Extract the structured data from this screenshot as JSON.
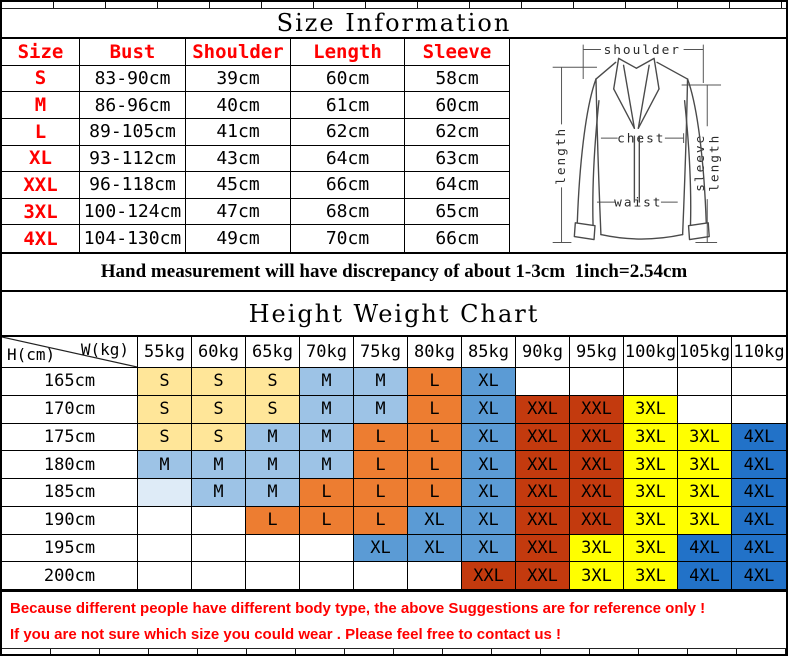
{
  "title": "Size Information",
  "size_table": {
    "headers": [
      "Size",
      "Bust",
      "Shoulder",
      "Length",
      "Sleeve"
    ],
    "rows": [
      {
        "size": "S",
        "bust": "83-90cm",
        "shoulder": "39cm",
        "length": "60cm",
        "sleeve": "58cm"
      },
      {
        "size": "M",
        "bust": "86-96cm",
        "shoulder": "40cm",
        "length": "61cm",
        "sleeve": "60cm"
      },
      {
        "size": "L",
        "bust": "89-105cm",
        "shoulder": "41cm",
        "length": "62cm",
        "sleeve": "62cm"
      },
      {
        "size": "XL",
        "bust": "93-112cm",
        "shoulder": "43cm",
        "length": "64cm",
        "sleeve": "63cm"
      },
      {
        "size": "XXL",
        "bust": "96-118cm",
        "shoulder": "45cm",
        "length": "66cm",
        "sleeve": "64cm"
      },
      {
        "size": "3XL",
        "bust": "100-124cm",
        "shoulder": "47cm",
        "length": "68cm",
        "sleeve": "65cm"
      },
      {
        "size": "4XL",
        "bust": "104-130cm",
        "shoulder": "49cm",
        "length": "70cm",
        "sleeve": "66cm"
      }
    ]
  },
  "diagram": {
    "shoulder": "shoulder",
    "chest": "chest",
    "waist": "waist",
    "length": "length",
    "sleeve_word1": "sleeve",
    "sleeve_word2": "length"
  },
  "note": "Hand measurement will have discrepancy of about 1-3cm  1inch=2.54cm",
  "hw_chart": {
    "title": "Height Weight Chart",
    "corner_h": "H(cm)",
    "corner_w": "W(kg)",
    "weights": [
      "55kg",
      "60kg",
      "65kg",
      "70kg",
      "75kg",
      "80kg",
      "85kg",
      "90kg",
      "95kg",
      "100kg",
      "105kg",
      "110kg"
    ],
    "heights": [
      "165cm",
      "170cm",
      "175cm",
      "180cm",
      "185cm",
      "190cm",
      "195cm",
      "200cm"
    ],
    "cells": [
      [
        "S",
        "S",
        "S",
        "M",
        "M",
        "L",
        "XL",
        "",
        "",
        "",
        "",
        ""
      ],
      [
        "S",
        "S",
        "S",
        "M",
        "M",
        "L",
        "XL",
        "XXL",
        "XXL",
        "3XL",
        "",
        ""
      ],
      [
        "S",
        "S",
        "M",
        "M",
        "L",
        "L",
        "XL",
        "XXL",
        "XXL",
        "3XL",
        "3XL",
        "4XL"
      ],
      [
        "M",
        "M",
        "M",
        "M",
        "L",
        "L",
        "XL",
        "XXL",
        "XXL",
        "3XL",
        "3XL",
        "4XL"
      ],
      [
        "~",
        "M",
        "M",
        "L",
        "L",
        "L",
        "XL",
        "XXL",
        "XXL",
        "3XL",
        "3XL",
        "4XL"
      ],
      [
        "",
        "",
        "L",
        "L",
        "L",
        "XL",
        "XL",
        "XXL",
        "XXL",
        "3XL",
        "3XL",
        "4XL"
      ],
      [
        "",
        "",
        "",
        "",
        "XL",
        "XL",
        "XL",
        "XXL",
        "3XL",
        "3XL",
        "4XL",
        "4XL"
      ],
      [
        "",
        "",
        "",
        "",
        "",
        "",
        "XXL",
        "XXL",
        "3XL",
        "3XL",
        "4XL",
        "4XL"
      ]
    ]
  },
  "footer": {
    "line1": "Because different people have different body type, the above Suggestions are for reference only !",
    "line2": "If you are not sure which size you could wear . Please feel free to contact us !"
  },
  "colors": {
    "S": "#FFE699",
    "M": "#9DC3E6",
    "L": "#ED7D31",
    "XL": "#5B9BD5",
    "XXL": "#C33A0E",
    "3XL": "#FFFF00",
    "4XL": "#2272C8",
    "empty_tint": "#DEEBF7",
    "red_text": "#FF0000"
  }
}
